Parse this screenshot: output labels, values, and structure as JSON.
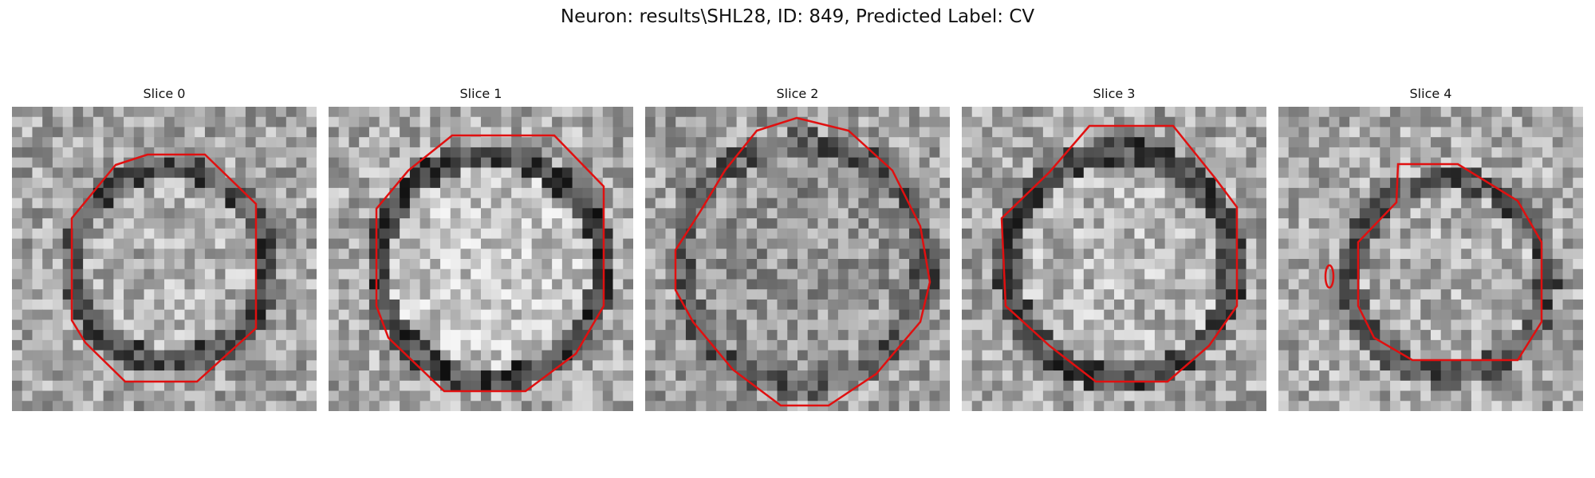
{
  "figure": {
    "title": "Neuron: results\\SHL28, ID: 849, Predicted Label: CV"
  },
  "panels": [
    {
      "title": "Slice 0"
    },
    {
      "title": "Slice 1"
    },
    {
      "title": "Slice 2"
    },
    {
      "title": "Slice 3"
    },
    {
      "title": "Slice 4"
    }
  ],
  "style": {
    "contour_color": "#e01010",
    "background": "#ffffff"
  }
}
